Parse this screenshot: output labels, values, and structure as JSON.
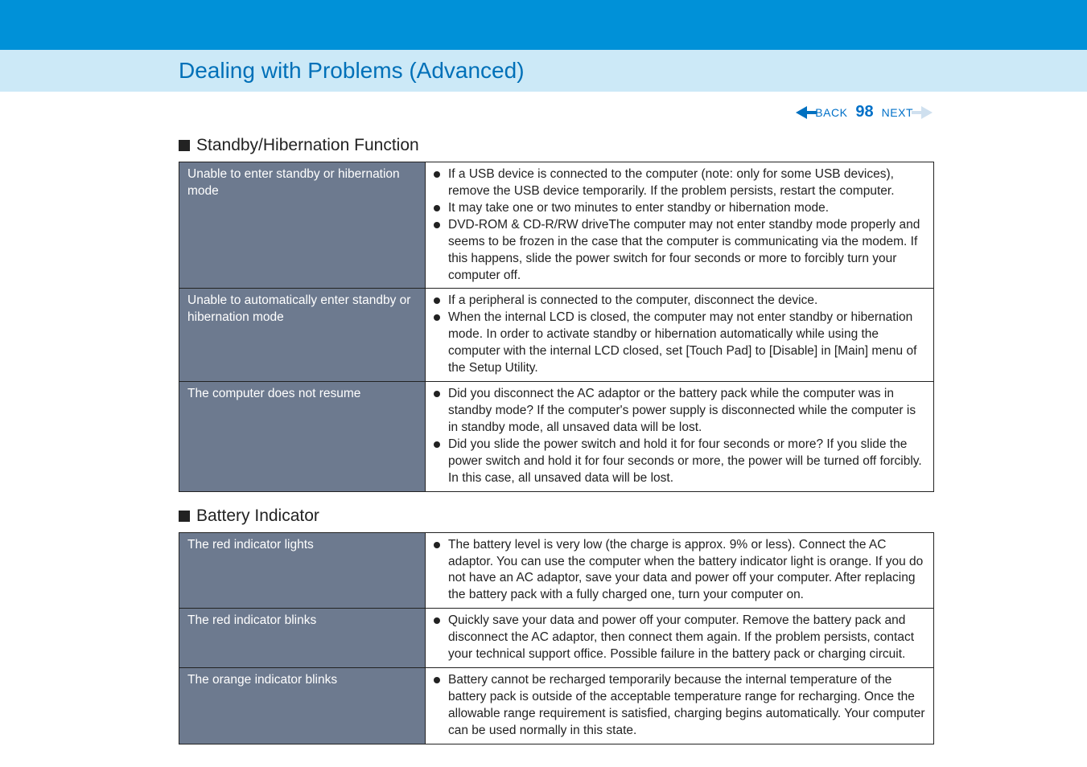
{
  "colors": {
    "top_banner": "#0091d8",
    "title_strip_bg": "#cce9f7",
    "title_text": "#0070b8",
    "nav_text": "#0070c8",
    "table_left_bg": "#6d7a8f",
    "table_left_text": "#ffffff",
    "table_border": "#222222",
    "body_text": "#222222"
  },
  "page_title": "Dealing with Problems (Advanced)",
  "nav": {
    "back_label": "BACK",
    "page_number": "98",
    "next_label": "NEXT"
  },
  "section1": {
    "heading": "Standby/Hibernation Function",
    "rows": [
      {
        "label": "Unable to enter standby or hibernation mode",
        "bullets": [
          "If a USB device is connected to the computer (note: only for some USB devices), remove the USB device temporarily.  If the problem persists, restart the computer.",
          "It may take one or two minutes to enter standby or hibernation mode.",
          "DVD-ROM & CD-R/RW driveThe computer may not enter standby mode properly and seems to be frozen in the case that the computer is communicating via the modem. If this happens, slide the power switch for four seconds or more to forcibly turn your computer off."
        ]
      },
      {
        "label": "Unable to automatically enter standby or hibernation mode",
        "bullets": [
          "If a peripheral is connected to the computer, disconnect the device.",
          "When the internal LCD is closed, the computer may not enter standby or hibernation mode. In order to activate standby or hibernation automatically while using the computer with the internal LCD closed, set [Touch Pad] to [Disable] in [Main] menu of the Setup Utility."
        ]
      },
      {
        "label": "The computer does not resume",
        "bullets": [
          "Did you disconnect the AC adaptor or the battery pack while the computer was in standby mode? If the computer's power supply is disconnected while the computer is in standby mode, all unsaved data will be lost.",
          "Did you slide the power switch and hold it for four seconds or more? If you slide the power switch and hold it for four seconds or more, the power will be turned off forcibly.   In this case, all unsaved data will be lost."
        ]
      }
    ]
  },
  "section2": {
    "heading": "Battery Indicator",
    "rows": [
      {
        "label": "The red indicator lights",
        "bullets": [
          "The battery level is very low (the charge is approx. 9% or less).\nConnect the AC adaptor.  You can use the computer when the battery indicator light is orange.   If you do not have an AC adaptor, save your data and power off your computer. After replacing the battery pack with a fully charged one, turn your computer on."
        ]
      },
      {
        "label": "The red indicator blinks",
        "bullets": [
          "Quickly save your data and power off your computer.  Remove the battery pack and disconnect the AC adaptor, then connect them again. If the problem persists, contact your technical support office. Possible failure in the battery pack or charging circuit."
        ]
      },
      {
        "label": "The orange indicator blinks",
        "bullets": [
          "Battery cannot be recharged temporarily because the internal temperature of the battery pack is outside of the acceptable temperature range for recharging. Once the allowable range requirement is satisfied, charging begins automatically.  Your computer can be used normally in this state."
        ]
      }
    ]
  }
}
